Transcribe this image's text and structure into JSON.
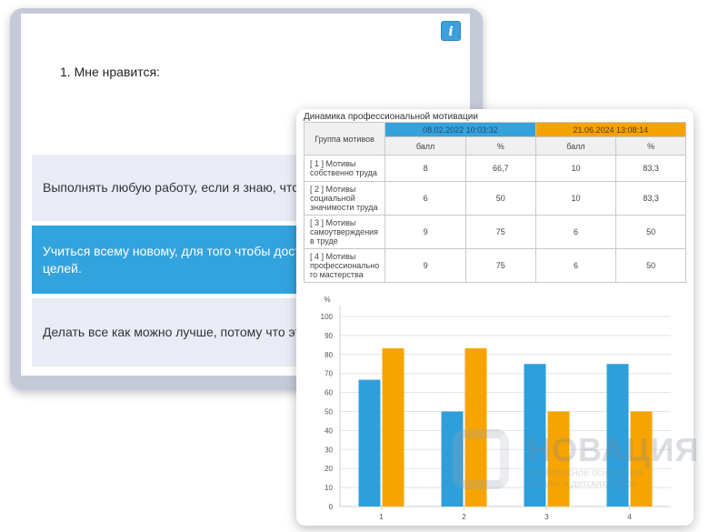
{
  "quiz": {
    "info_icon_label": "i",
    "question": "1. Мне нравится:",
    "answers": [
      {
        "text": "Выполнять любую работу, если я знаю, что мой"
      },
      {
        "text": "Учиться всему новому, для того чтобы достигну\nцелей."
      },
      {
        "text": "Делать все как можно лучше, потому что это по"
      }
    ]
  },
  "results": {
    "title": "Динамика профессиональной мотивации",
    "group_header": "Группа мотивов",
    "dates": [
      "08.02.2022 10:03:32",
      "21.06.2024 13:08:14"
    ],
    "sub_headers": [
      "балл",
      "%",
      "балл",
      "%"
    ],
    "rows": [
      {
        "label": "[ 1 ]   Мотивы собственно труда",
        "values": [
          "8",
          "66,7",
          "10",
          "83,3"
        ]
      },
      {
        "label": "[ 2 ]   Мотивы социальной значимости труда",
        "values": [
          "6",
          "50",
          "10",
          "83,3"
        ]
      },
      {
        "label": "[ 3 ]   Мотивы самоутверждения в труде",
        "values": [
          "9",
          "75",
          "6",
          "50"
        ]
      },
      {
        "label": "[ 4 ]   Мотивы профессионально го мастерства",
        "values": [
          "9",
          "75",
          "6",
          "50"
        ]
      }
    ]
  },
  "chart_data": {
    "type": "bar",
    "categories": [
      "1",
      "2",
      "3",
      "4"
    ],
    "series": [
      {
        "values": [
          66.7,
          50,
          75,
          75
        ],
        "color": "#2e9fda"
      },
      {
        "values": [
          83.3,
          83.3,
          50,
          50
        ],
        "color": "#f7a400"
      }
    ],
    "ylabel": "%",
    "ylim": [
      0,
      100
    ],
    "yticks": [
      0,
      10,
      20,
      30,
      40,
      50,
      60,
      70,
      80,
      90,
      100
    ],
    "grid": true
  },
  "watermark": {
    "brand": "НОВАЦИЯ",
    "tagline": "комплексное оснащение\nшколы и детских садов"
  }
}
